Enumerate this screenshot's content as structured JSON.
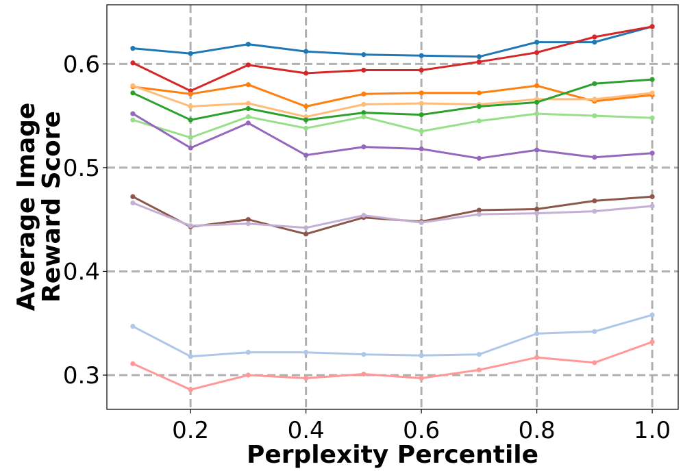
{
  "chart_data": {
    "type": "line",
    "title": "",
    "xlabel": "Perplexity Percentile",
    "ylabel_lines": [
      "Average Image",
      "Reward Score"
    ],
    "x": [
      0.1,
      0.2,
      0.3,
      0.4,
      0.5,
      0.6,
      0.7,
      0.8,
      0.9,
      1.0
    ],
    "xlim": [
      0.055,
      1.045
    ],
    "ylim": [
      0.267,
      0.657
    ],
    "xticks": [
      0.2,
      0.4,
      0.6,
      0.8,
      1.0
    ],
    "xtick_labels": [
      "0.2",
      "0.4",
      "0.6",
      "0.8",
      "1.0"
    ],
    "yticks": [
      0.3,
      0.4,
      0.5,
      0.6
    ],
    "ytick_labels": [
      "0.3",
      "0.4",
      "0.5",
      "0.6"
    ],
    "grid": true,
    "series": [
      {
        "name": "blue",
        "color": "#1f77b4",
        "values": [
          0.615,
          0.61,
          0.619,
          0.612,
          0.609,
          0.608,
          0.607,
          0.621,
          0.621,
          0.636
        ]
      },
      {
        "name": "red",
        "color": "#d62728",
        "values": [
          0.601,
          0.574,
          0.599,
          0.591,
          0.594,
          0.594,
          0.602,
          0.611,
          0.626,
          0.636
        ]
      },
      {
        "name": "orange",
        "color": "#ff7f0e",
        "values": [
          0.578,
          0.571,
          0.58,
          0.559,
          0.571,
          0.572,
          0.572,
          0.579,
          0.564,
          0.57
        ]
      },
      {
        "name": "light orange",
        "color": "#ffbb78",
        "values": [
          0.579,
          0.559,
          0.562,
          0.549,
          0.561,
          0.562,
          0.561,
          0.566,
          0.566,
          0.572
        ]
      },
      {
        "name": "green",
        "color": "#2ca02c",
        "values": [
          0.572,
          0.546,
          0.557,
          0.546,
          0.553,
          0.551,
          0.559,
          0.563,
          0.581,
          0.585
        ]
      },
      {
        "name": "light green",
        "color": "#98df8a",
        "values": [
          0.546,
          0.529,
          0.549,
          0.538,
          0.549,
          0.535,
          0.545,
          0.552,
          0.55,
          0.548
        ]
      },
      {
        "name": "purple",
        "color": "#9467bd",
        "values": [
          0.552,
          0.519,
          0.543,
          0.512,
          0.52,
          0.518,
          0.509,
          0.517,
          0.51,
          0.514
        ]
      },
      {
        "name": "brown",
        "color": "#8c564b",
        "values": [
          0.472,
          0.443,
          0.45,
          0.436,
          0.452,
          0.448,
          0.459,
          0.46,
          0.468,
          0.472
        ]
      },
      {
        "name": "light purple",
        "color": "#c5b0d5",
        "values": [
          0.466,
          0.444,
          0.446,
          0.442,
          0.454,
          0.447,
          0.455,
          0.456,
          0.458,
          0.463
        ]
      },
      {
        "name": "light blue",
        "color": "#aec7e8",
        "values": [
          0.347,
          0.318,
          0.322,
          0.322,
          0.32,
          0.319,
          0.32,
          0.34,
          0.342,
          0.358
        ]
      },
      {
        "name": "pink",
        "color": "#ff9896",
        "values": [
          0.311,
          0.286,
          0.3,
          0.297,
          0.301,
          0.297,
          0.305,
          0.317,
          0.312,
          0.332
        ]
      }
    ]
  }
}
